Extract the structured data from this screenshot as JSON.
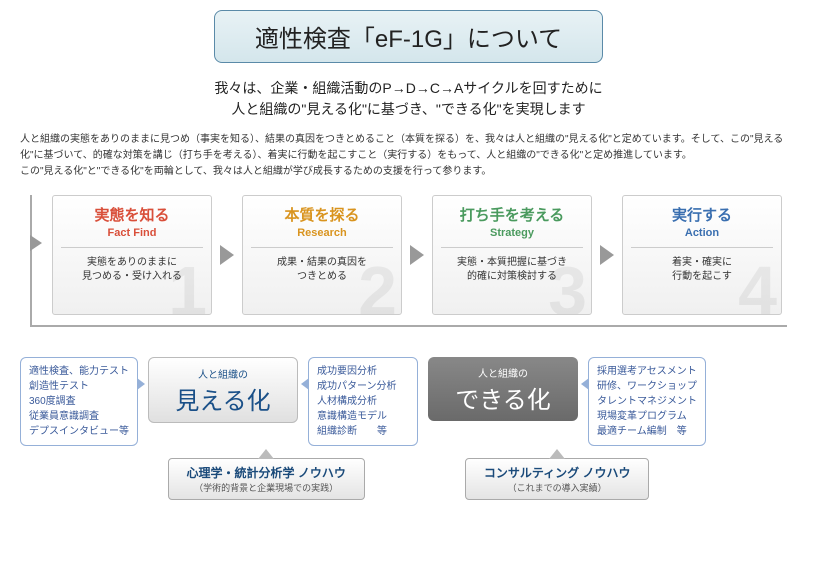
{
  "title": "適性検査「eF-1G」について",
  "subtitle_l1": "我々は、企業・組織活動のP→D→C→Aサイクルを回すために",
  "subtitle_l2": "人と組織の\"見える化\"に基づき、\"できる化\"を実現します",
  "desc_p1": "人と組織の実態をありのままに見つめ（事実を知る）、結果の真因をつきとめること（本質を探る）を、我々は人と組織の\"見える化\"と定めています。そして、この\"見える化\"に基づいて、的確な対策を講じ（打ち手を考える）、着実に行動を起こすこと（実行する）をもって、人と組織の\"できる化\"と定め推進しています。",
  "desc_p2": "この\"見える化\"と\"できる化\"を両輪として、我々は人と組織が学び成長するための支援を行って参ります。",
  "steps": [
    {
      "num": "1",
      "jp": "実態を知る",
      "en": "Fact Find",
      "d1": "実態をありのままに",
      "d2": "見つめる・受け入れる",
      "color": "#d94f3a"
    },
    {
      "num": "2",
      "jp": "本質を探る",
      "en": "Research",
      "d1": "成果・結果の真因を",
      "d2": "つきとめる",
      "color": "#d9941f"
    },
    {
      "num": "3",
      "jp": "打ち手を考える",
      "en": "Strategy",
      "d1": "実態・本質把握に基づき",
      "d2": "的確に対策検討する",
      "color": "#4a9a5e"
    },
    {
      "num": "4",
      "jp": "実行する",
      "en": "Action",
      "d1": "着実・確実に",
      "d2": "行動を起こす",
      "color": "#3a6fb0"
    }
  ],
  "bubble_left": [
    "適性検査、能力テスト",
    "創造性テスト",
    "360度調査",
    "従業員意識調査",
    "デプスインタビュー等"
  ],
  "bubble_mid": [
    "成功要因分析",
    "成功パターン分析",
    "人材構成分析",
    "意識構造モデル",
    "組織診断　　等"
  ],
  "bubble_right": [
    "採用選考アセスメント",
    "研修、ワークショップ",
    "タレントマネジメント",
    "現場変革プログラム",
    "最適チーム編制　等"
  ],
  "mieru_sm": "人と組織の",
  "mieru_lg": "見える化",
  "dekiru_sm": "人と組織の",
  "dekiru_lg": "できる化",
  "foot1_t": "心理学・統計分析学 ノウハウ",
  "foot1_s": "（学術的背景と企業現場での実践）",
  "foot2_t": "コンサルティング ノウハウ",
  "foot2_s": "（これまでの導入実績）",
  "colors": {
    "title_border": "#5a8aa8",
    "step1": "#d94f3a",
    "step2": "#d9941f",
    "step3": "#4a9a5e",
    "step4": "#3a6fb0",
    "bubble_border": "#95b0d8",
    "bubble_text": "#3a5a9a"
  }
}
